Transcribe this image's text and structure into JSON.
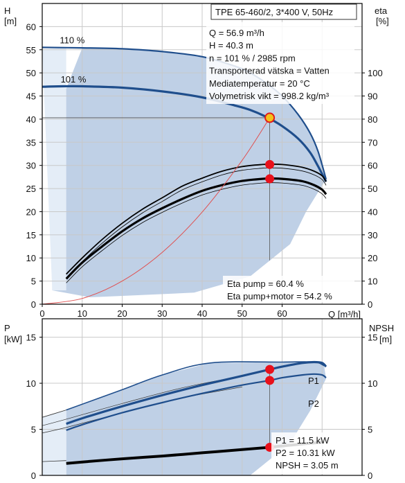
{
  "chart_data": [
    {
      "type": "line",
      "title": "TPE 65-460/2, 3*400 V, 50Hz",
      "xlabel": "Q [m³/h]",
      "xlim": [
        0,
        80
      ],
      "xticks": [
        0,
        10,
        20,
        30,
        40,
        50,
        60
      ],
      "ylabel_left": [
        "H",
        "[m]"
      ],
      "ylim_left": [
        0,
        65
      ],
      "yticks_left": [
        0,
        5,
        10,
        15,
        20,
        25,
        30,
        35,
        40,
        45,
        50,
        55,
        60
      ],
      "ylabel_right": [
        "eta",
        "[%]"
      ],
      "ylim_right": [
        0,
        130
      ],
      "yticks_right": [
        0,
        10,
        20,
        30,
        40,
        50,
        60,
        70,
        80,
        90,
        100
      ],
      "grid": true,
      "operating_point": {
        "lines": [
          "Q = 56.9 m³/h",
          "H = 40.3 m",
          "n = 101 % / 2985 rpm",
          "Transporterad vätska = Vatten",
          "Mediatemperatur = 20 °C",
          "Volymetrisk vikt = 998.2 kg/m³"
        ],
        "Q": 56.9,
        "H": 40.3
      },
      "eta_labels": [
        "Eta pump = 60.4 %",
        "Eta pump+motor = 54.2 %"
      ],
      "series": [
        {
          "name": "110 %",
          "axis": "left",
          "color": "#1f4e8c",
          "x": [
            0,
            10,
            20,
            30,
            40,
            48,
            52,
            56,
            60,
            64,
            67,
            69,
            71
          ],
          "y": [
            55.5,
            55.4,
            55.2,
            54.6,
            53.5,
            51.5,
            50.0,
            47.8,
            45.0,
            41.0,
            37.0,
            33.0,
            27.0
          ]
        },
        {
          "name": "101 %",
          "axis": "left",
          "color": "#1f4e8c",
          "x": [
            0,
            5,
            10,
            20,
            30,
            40,
            48,
            52,
            56,
            60,
            64,
            67,
            69,
            71
          ],
          "y": [
            47.0,
            47.1,
            47.1,
            46.8,
            46.0,
            44.7,
            43.0,
            42.0,
            40.5,
            38.5,
            35.8,
            32.8,
            29.8,
            26.5
          ]
        },
        {
          "name": "Eta pump",
          "axis": "right",
          "x": [
            6,
            10,
            15,
            20,
            25,
            30,
            35,
            40,
            45,
            50,
            55,
            57,
            60,
            65,
            68,
            70,
            71
          ],
          "y": [
            13,
            20,
            28,
            35,
            41,
            46,
            51,
            54.5,
            57.5,
            59.5,
            60.4,
            60.5,
            60.4,
            59.2,
            57.5,
            55.5,
            53
          ]
        },
        {
          "name": "Eta pump+motor",
          "axis": "right",
          "x": [
            6,
            10,
            15,
            20,
            25,
            30,
            35,
            40,
            45,
            50,
            55,
            57,
            60,
            65,
            68,
            70,
            71
          ],
          "y": [
            11,
            18,
            25,
            31.5,
            37,
            41.5,
            45.5,
            49,
            51.5,
            53.3,
            54.2,
            54.3,
            54.2,
            53.2,
            51.5,
            49.5,
            47.5
          ]
        },
        {
          "name": "System curve",
          "axis": "left",
          "color": "#e05050",
          "x": [
            0,
            10,
            20,
            30,
            40,
            50,
            56.9
          ],
          "y": [
            0,
            1.25,
            5.0,
            11.2,
            19.9,
            31.1,
            40.3
          ]
        }
      ],
      "markers": [
        {
          "series": "operating point",
          "x": 56.9,
          "y": 40.3,
          "axis": "left"
        },
        {
          "series": "Eta pump",
          "x": 56.9,
          "y": 60.4,
          "axis": "right"
        },
        {
          "series": "Eta pump+motor",
          "x": 56.9,
          "y": 54.2,
          "axis": "right"
        }
      ]
    },
    {
      "type": "line",
      "xlim": [
        0,
        80
      ],
      "ylabel_left": [
        "P",
        "[kW]"
      ],
      "ylim_left": [
        0,
        17
      ],
      "yticks_left": [
        0,
        5,
        10,
        15
      ],
      "ylabel_right": [
        "NPSH",
        "[m]"
      ],
      "ylim_right": [
        0,
        17
      ],
      "yticks_right": [
        0,
        5,
        10,
        15
      ],
      "grid": true,
      "values_text": [
        "P1 = 11.5 kW",
        "P2 = 10.31 kW",
        "NPSH = 3.05 m"
      ],
      "series": [
        {
          "name": "P1",
          "axis": "left",
          "color": "#1f4e8c",
          "x": [
            6,
            10,
            20,
            30,
            40,
            50,
            56.9,
            60,
            65,
            68,
            70,
            71
          ],
          "y": [
            5.6,
            6.2,
            7.5,
            8.7,
            9.8,
            10.8,
            11.5,
            11.8,
            12.2,
            12.3,
            12.2,
            11.8
          ]
        },
        {
          "name": "P2",
          "axis": "left",
          "color": "#1f4e8c",
          "x": [
            6,
            10,
            20,
            30,
            40,
            50,
            56.9,
            60,
            65,
            68,
            70,
            71
          ],
          "y": [
            4.9,
            5.5,
            6.8,
            7.9,
            8.9,
            9.8,
            10.31,
            10.6,
            10.9,
            11.0,
            10.9,
            10.6
          ]
        },
        {
          "name": "NPSH",
          "axis": "right",
          "color": "#000000",
          "x": [
            6,
            10,
            20,
            30,
            40,
            50,
            56.9,
            60,
            65,
            70
          ],
          "y": [
            1.3,
            1.45,
            1.8,
            2.1,
            2.45,
            2.8,
            3.05,
            3.2,
            3.4,
            3.6
          ]
        }
      ],
      "markers": [
        {
          "series": "P1",
          "x": 56.9,
          "y": 11.5,
          "axis": "left"
        },
        {
          "series": "P2",
          "x": 56.9,
          "y": 10.31,
          "axis": "left"
        },
        {
          "series": "NPSH",
          "x": 56.9,
          "y": 3.05,
          "axis": "right"
        }
      ]
    }
  ]
}
